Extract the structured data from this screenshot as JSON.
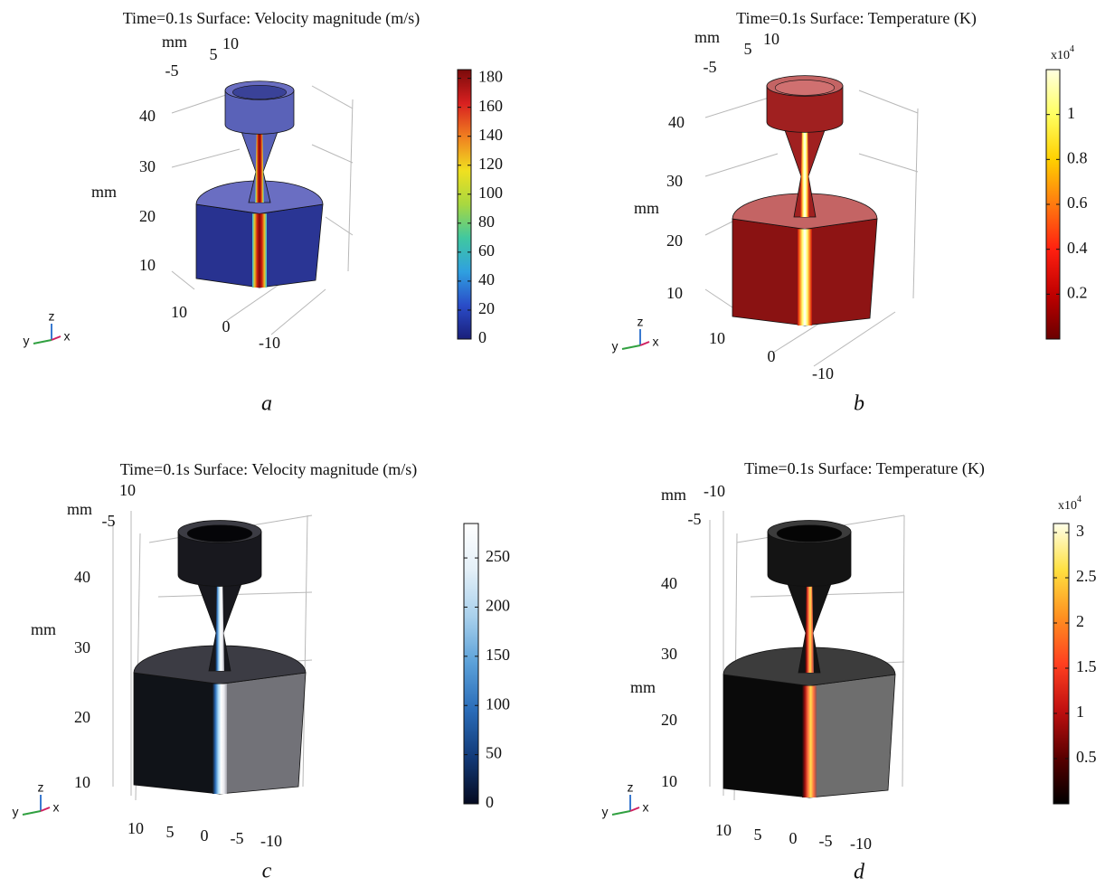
{
  "chart_data": [
    {
      "type": "surface3d",
      "title": "Time=0.1s Surface: Velocity magnitude (m/s)",
      "caption": "a",
      "z_label": "mm",
      "top_label": "mm",
      "zticks": [
        10,
        20,
        30,
        40
      ],
      "top_ticks": [
        -5,
        5,
        10
      ],
      "bottom_ticks": [
        10,
        0,
        -10
      ],
      "triad": [
        "z",
        "y",
        "x"
      ],
      "colorbar": {
        "colormap": [
          "#1a1f7a",
          "#2a4cc8",
          "#2fa0e0",
          "#40c8a0",
          "#a8d840",
          "#f0e020",
          "#f08020",
          "#d82020",
          "#7a0a0a"
        ],
        "lim": [
          0,
          186
        ],
        "ticks": [
          0,
          20,
          40,
          60,
          80,
          100,
          120,
          140,
          160,
          180
        ]
      }
    },
    {
      "type": "surface3d",
      "title": "Time=0.1s Surface: Temperature (K)",
      "caption": "b",
      "z_label": "mm",
      "top_label": "mm",
      "zticks": [
        10,
        20,
        30,
        40
      ],
      "top_ticks": [
        -5,
        5,
        10
      ],
      "bottom_ticks": [
        10,
        0,
        -10
      ],
      "triad": [
        "z",
        "y",
        "x"
      ],
      "colorbar": {
        "colormap": [
          "#6a0000",
          "#c00000",
          "#ff2010",
          "#ff7a10",
          "#ffd000",
          "#ffff60",
          "#ffffe0"
        ],
        "lim": [
          0,
          1.2
        ],
        "ticks": [
          0.2,
          0.4,
          0.6,
          0.8,
          1
        ],
        "multiplier": "x10",
        "multiplier_exponent": "4"
      }
    },
    {
      "type": "surface3d",
      "title": "Time=0.1s Surface: Velocity magnitude (m/s)",
      "caption": "c",
      "z_label": "mm",
      "top_label": "mm",
      "zticks": [
        10,
        20,
        30,
        40
      ],
      "top_ticks": [
        10,
        -5
      ],
      "bottom_ticks": [
        10,
        5,
        0,
        -5,
        -10
      ],
      "triad": [
        "z",
        "y",
        "x"
      ],
      "colorbar": {
        "colormap": [
          "#050a20",
          "#123a78",
          "#2a6cb8",
          "#5aa0d8",
          "#a8d0ec",
          "#e4f0f8",
          "#ffffff"
        ],
        "lim": [
          0,
          285
        ],
        "ticks": [
          0,
          50,
          100,
          150,
          200,
          250
        ]
      }
    },
    {
      "type": "surface3d",
      "title": "Time=0.1s Surface: Temperature (K)",
      "caption": "d",
      "z_label": "mm",
      "top_label": "mm",
      "zticks": [
        10,
        20,
        30,
        40
      ],
      "top_ticks": [
        -10,
        -5
      ],
      "bottom_ticks": [
        10,
        5,
        0,
        -5,
        -10
      ],
      "triad": [
        "z",
        "y",
        "x"
      ],
      "colorbar": {
        "colormap": [
          "#000000",
          "#5a0000",
          "#c01010",
          "#ff4020",
          "#ff9020",
          "#ffe040",
          "#ffffe8"
        ],
        "lim": [
          0,
          3.1
        ],
        "ticks": [
          0.5,
          1,
          1.5,
          2,
          2.5,
          3
        ],
        "multiplier": "x10",
        "multiplier_exponent": "4"
      }
    }
  ]
}
